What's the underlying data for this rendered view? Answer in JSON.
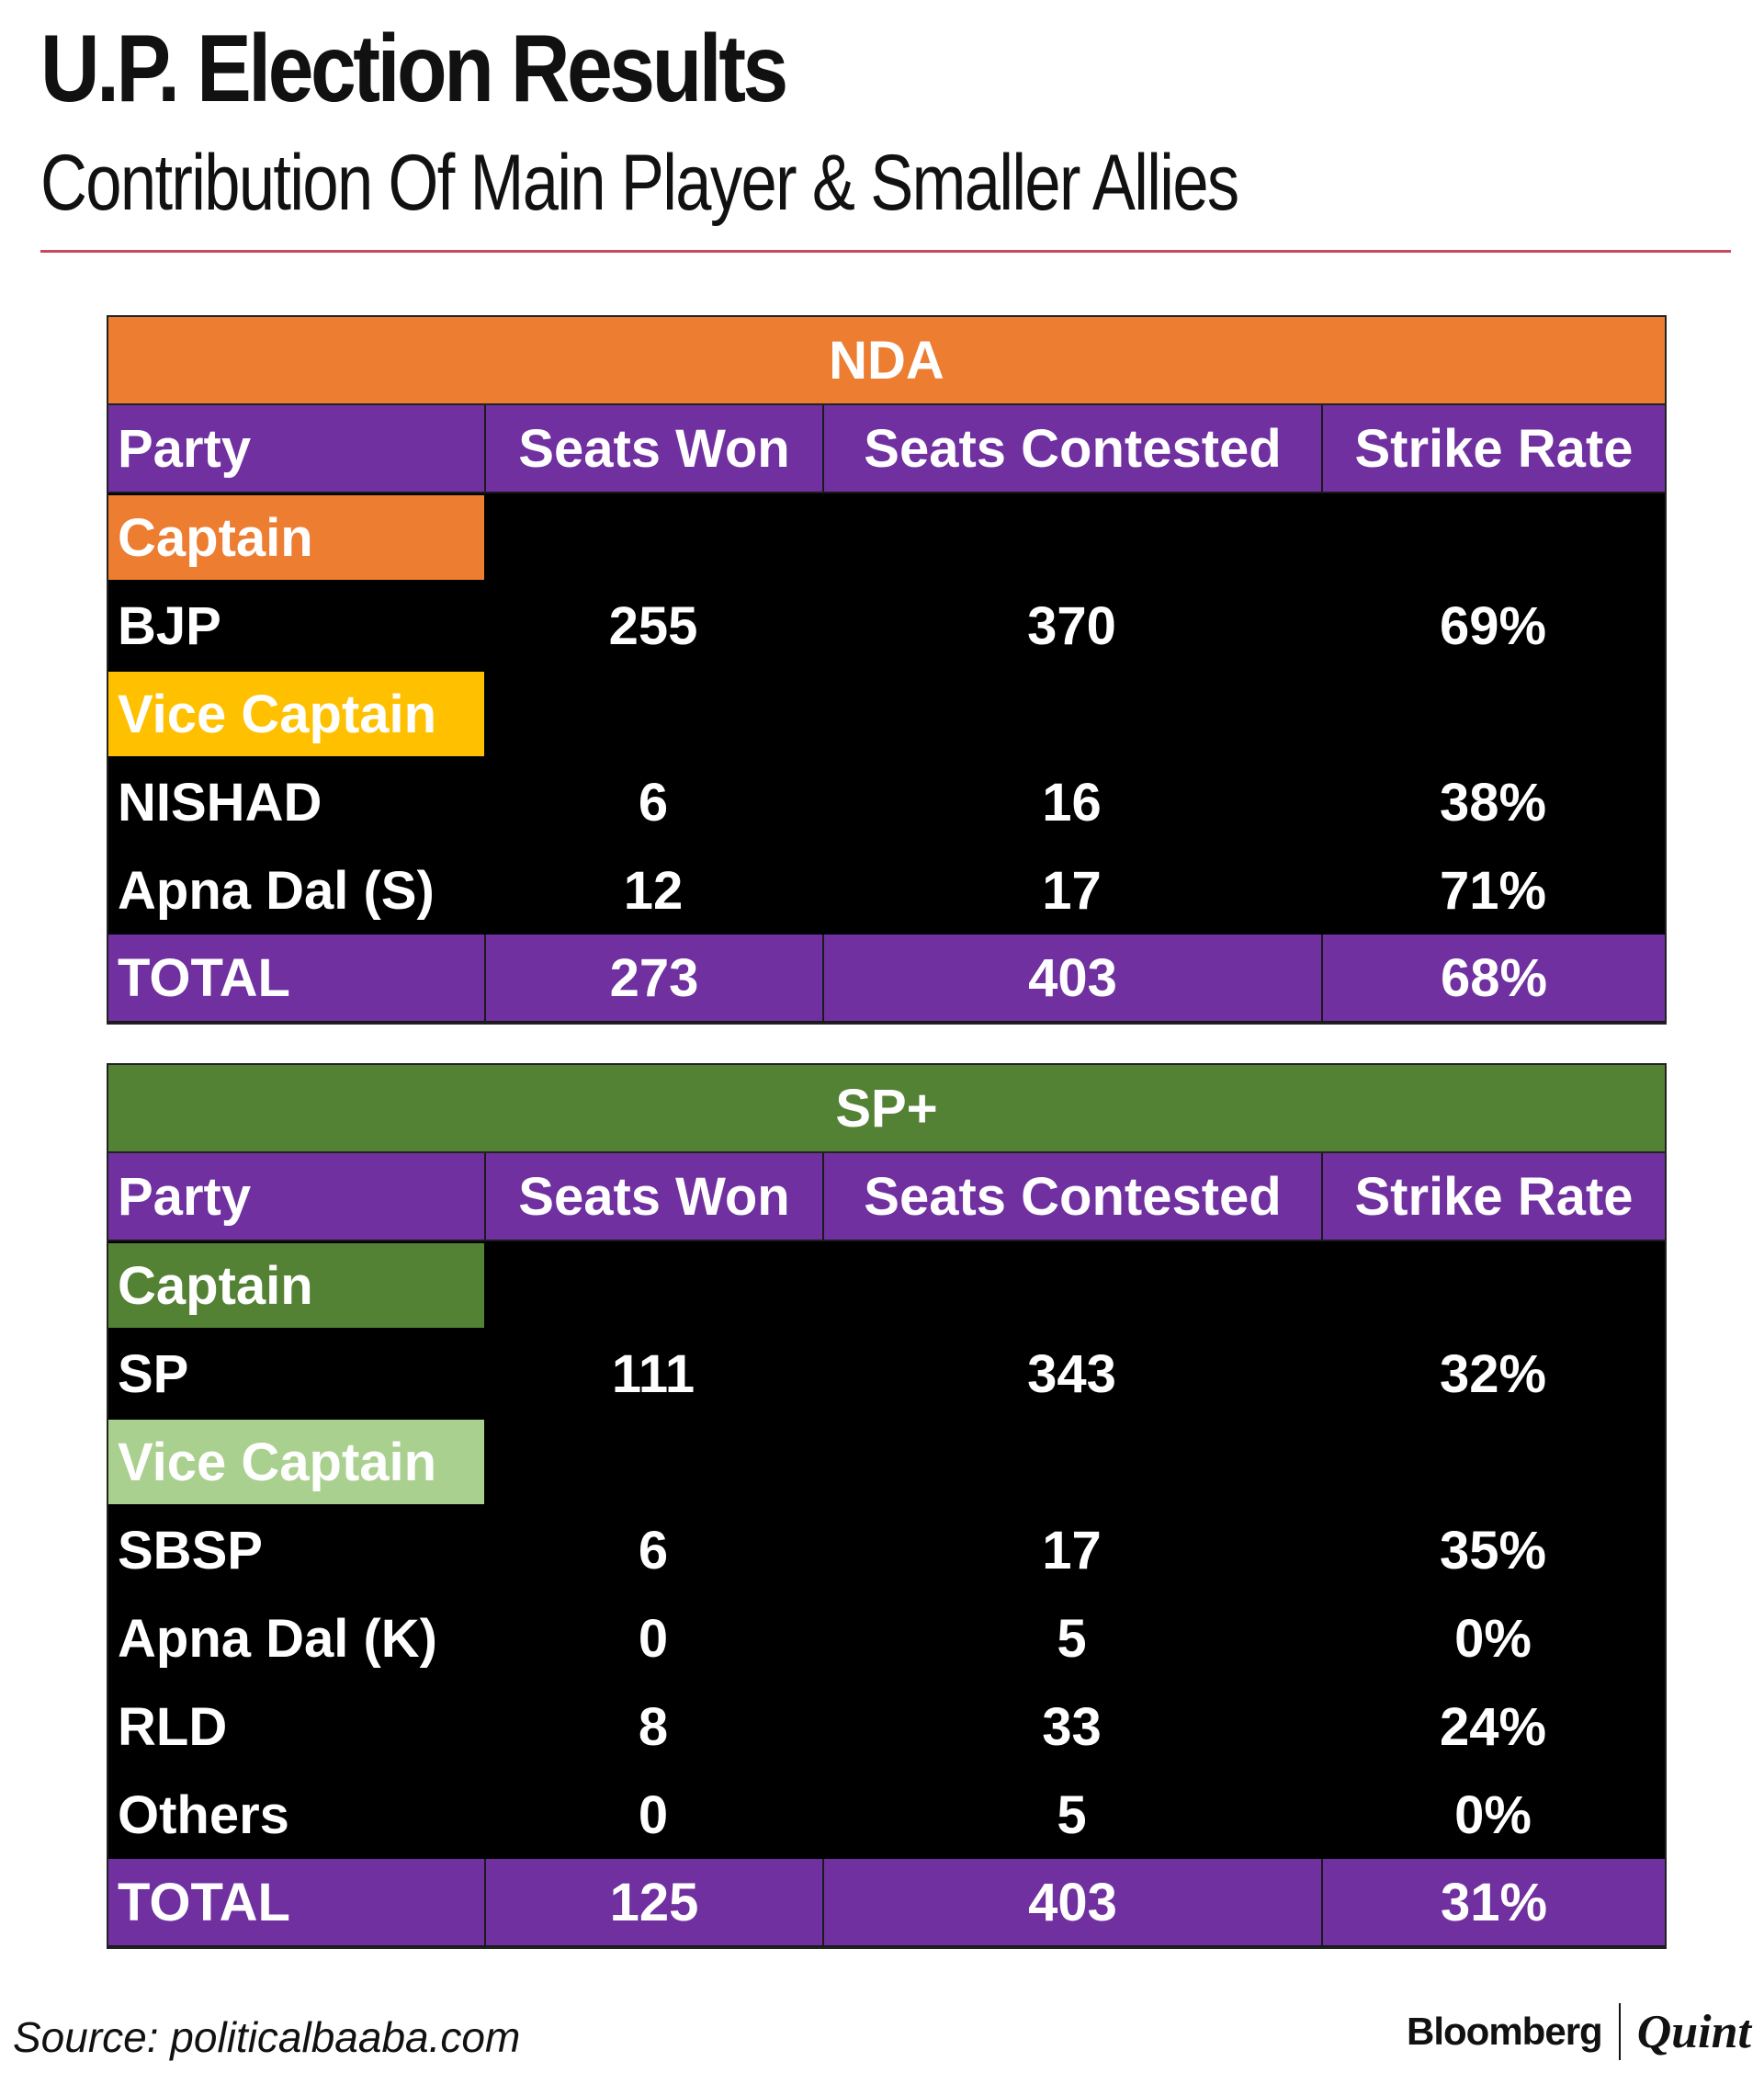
{
  "header": {
    "title": "U.P. Election Results",
    "subtitle": "Contribution Of Main Player & Smaller Allies"
  },
  "colors": {
    "rule": "#c9485b",
    "header_purple": "#7030a0",
    "nda_orange": "#ed7d31",
    "vice_yellow": "#ffc000",
    "sp_green": "#548235",
    "sp_vice_green": "#a9d08e",
    "body_black": "#000000"
  },
  "chart_data": [
    {
      "type": "table",
      "group": "NDA",
      "columns": [
        "Party",
        "Seats Won",
        "Seats Contested",
        "Strike Rate"
      ],
      "roles": {
        "captain": "Captain",
        "vice": "Vice Captain"
      },
      "captain": {
        "party": "BJP",
        "won": "255",
        "contested": "370",
        "rate": "69%"
      },
      "vice": [
        {
          "party": "NISHAD",
          "won": "6",
          "contested": "16",
          "rate": "38%"
        },
        {
          "party": "Apna Dal (S)",
          "won": "12",
          "contested": "17",
          "rate": "71%"
        }
      ],
      "total": {
        "party": "TOTAL",
        "won": "273",
        "contested": "403",
        "rate": "68%"
      }
    },
    {
      "type": "table",
      "group": "SP+",
      "columns": [
        "Party",
        "Seats Won",
        "Seats Contested",
        "Strike Rate"
      ],
      "roles": {
        "captain": "Captain",
        "vice": "Vice Captain"
      },
      "captain": {
        "party": "SP",
        "won": "111",
        "contested": "343",
        "rate": "32%"
      },
      "vice": [
        {
          "party": "SBSP",
          "won": "6",
          "contested": "17",
          "rate": "35%"
        },
        {
          "party": "Apna Dal (K)",
          "won": "0",
          "contested": "5",
          "rate": "0%"
        },
        {
          "party": "RLD",
          "won": "8",
          "contested": "33",
          "rate": "24%"
        },
        {
          "party": "Others",
          "won": "0",
          "contested": "5",
          "rate": "0%"
        }
      ],
      "total": {
        "party": "TOTAL",
        "won": "125",
        "contested": "403",
        "rate": "31%"
      }
    }
  ],
  "footer": {
    "source": "Source: politicalbaaba.com",
    "brand_left": "Bloomberg",
    "brand_right": "Quint"
  }
}
